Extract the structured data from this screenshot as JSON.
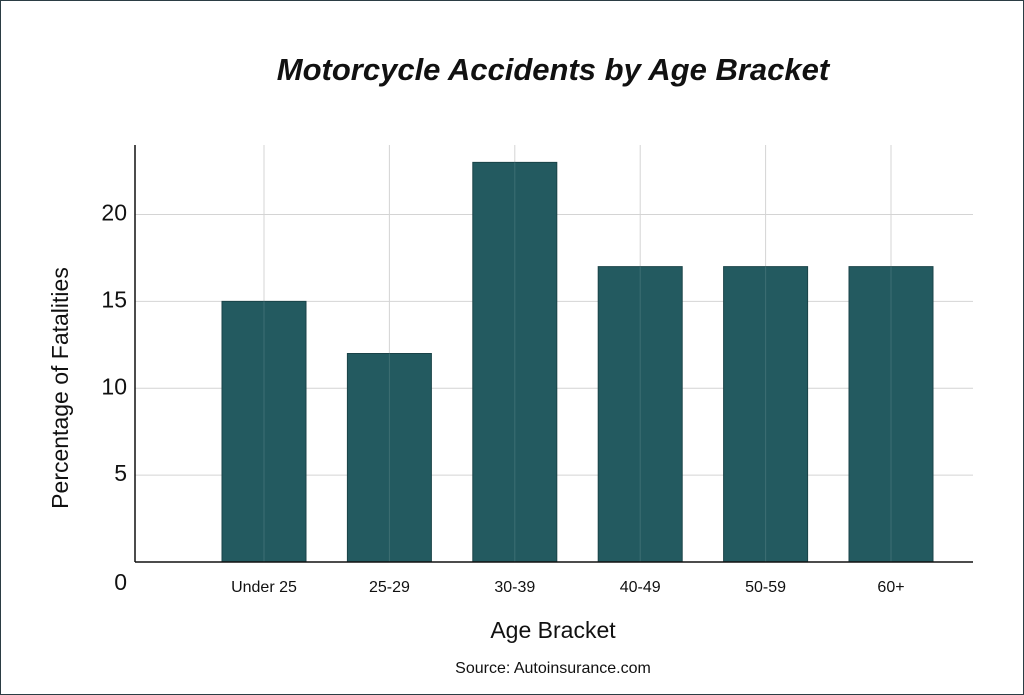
{
  "chart_data": {
    "type": "bar",
    "title": "Motorcycle Accidents by Age Bracket",
    "x_label": "Age Bracket",
    "y_label": "Percentage of Fatalities",
    "source": "Source: Autoinsurance.com",
    "categories": [
      "Under 25",
      "25-29",
      "30-39",
      "40-49",
      "50-59",
      "60+"
    ],
    "values": [
      15,
      12,
      23,
      17,
      17,
      17
    ],
    "color": "#235a60",
    "ylim": [
      0,
      24
    ],
    "yticks": [
      0,
      5,
      10,
      15,
      20
    ],
    "grid": true
  }
}
